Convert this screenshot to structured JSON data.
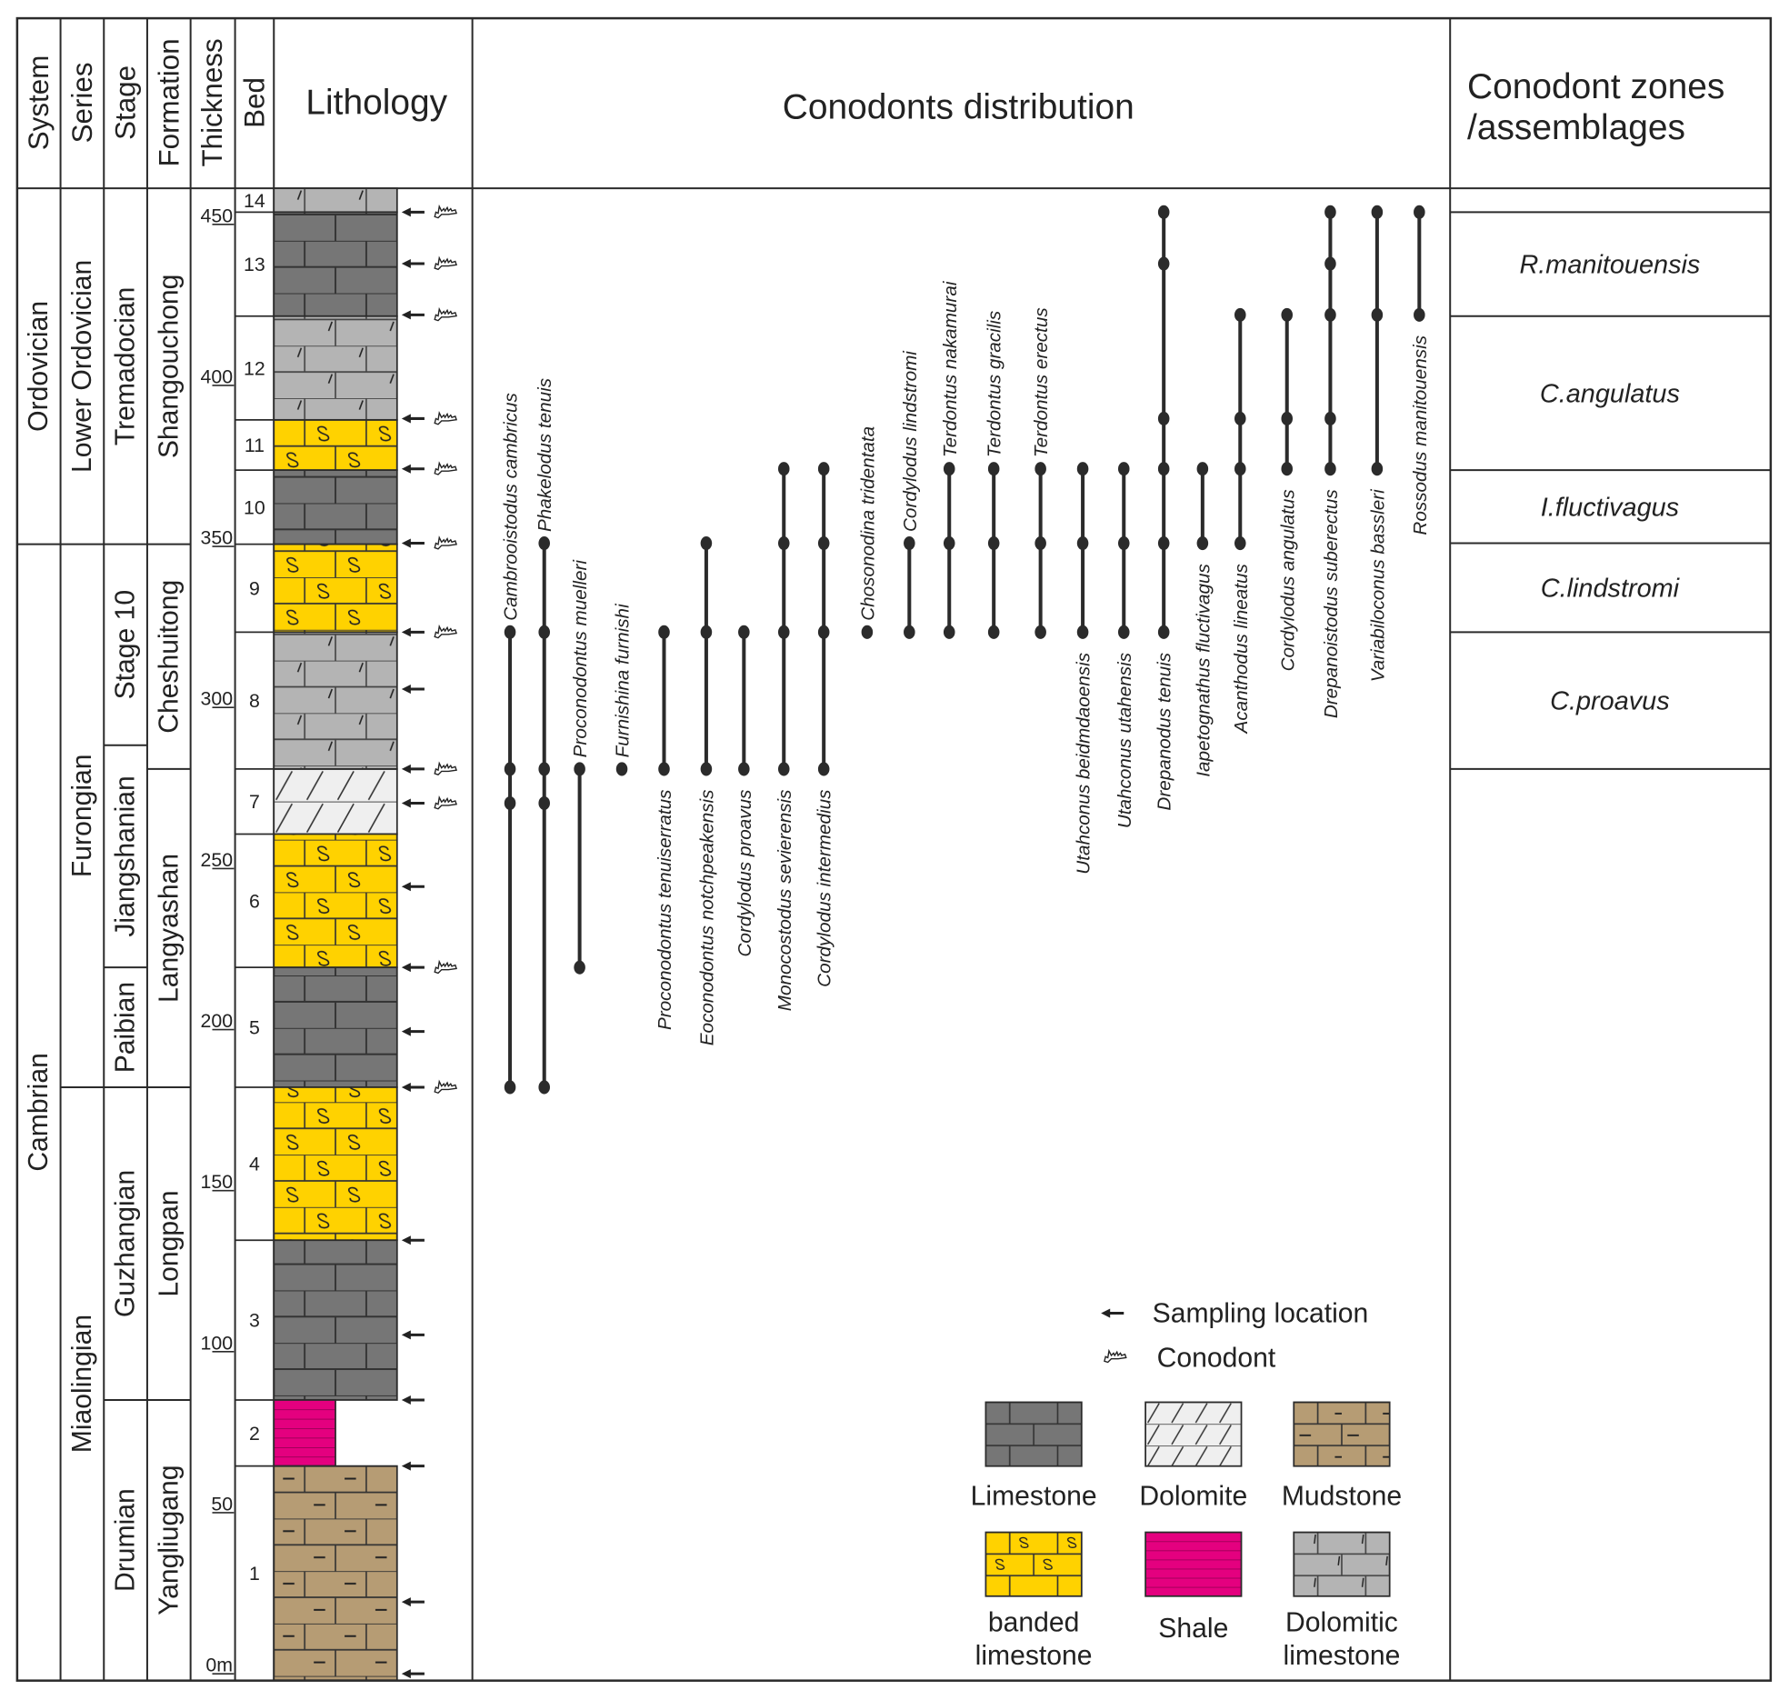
{
  "headers": {
    "system": "System",
    "series": "Series",
    "stage": "Stage",
    "formation": "Formation",
    "thickness": "Thickness",
    "bed": "Bed",
    "lithology": "Lithology",
    "distribution": "Conodonts distribution",
    "zones_line1": "Conodont zones",
    "zones_line2": "/assemblages"
  },
  "units": {
    "system": [
      {
        "name": "Ordovician",
        "top": 461.2,
        "base": 350.7
      },
      {
        "name": "Cambrian",
        "top": 350.7,
        "base": -2
      }
    ],
    "series": [
      {
        "name": "Lower Ordovician",
        "top": 461.2,
        "base": 350.7
      },
      {
        "name": "Furongian",
        "top": 350.7,
        "base": 182.1
      },
      {
        "name": "Miaolingian",
        "top": 182.1,
        "base": -2
      }
    ],
    "stage": [
      {
        "name": "Tremadocian",
        "top": 461.2,
        "base": 350.7
      },
      {
        "name": "Stage 10",
        "top": 350.7,
        "base": 288.3
      },
      {
        "name": "Jiangshanian",
        "top": 288.3,
        "base": 219.3
      },
      {
        "name": "Paibian",
        "top": 219.3,
        "base": 182.1
      },
      {
        "name": "Guzhangian",
        "top": 182.1,
        "base": 85.0
      },
      {
        "name": "Drumian",
        "top": 85.0,
        "base": -2
      }
    ],
    "formation": [
      {
        "name": "Shangouchong",
        "top": 461.2,
        "base": 350.7
      },
      {
        "name": "Cheshuitong",
        "top": 350.7,
        "base": 280.9
      },
      {
        "name": "Langyashan",
        "top": 280.9,
        "base": 182.1
      },
      {
        "name": "Longpan",
        "top": 182.1,
        "base": 85.0
      },
      {
        "name": "Yangliugang",
        "top": 85.0,
        "base": -2
      }
    ]
  },
  "thickness_ticks": [
    {
      "value": 0,
      "label": "0m"
    },
    {
      "value": 50,
      "label": "50"
    },
    {
      "value": 100,
      "label": "100"
    },
    {
      "value": 150,
      "label": "150"
    },
    {
      "value": 200,
      "label": "200"
    },
    {
      "value": 250,
      "label": "250"
    },
    {
      "value": 300,
      "label": "300"
    },
    {
      "value": 350,
      "label": "350"
    },
    {
      "value": 400,
      "label": "400"
    },
    {
      "value": 450,
      "label": "450"
    }
  ],
  "beds": [
    {
      "label": "14",
      "top": 461.2,
      "base": 453.8,
      "lithology": "dolomitic_limestone"
    },
    {
      "label": "13",
      "top": 453.8,
      "base": 421.5,
      "lithology": "limestone"
    },
    {
      "label": "12",
      "top": 421.5,
      "base": 389.3,
      "lithology": "dolomitic_limestone"
    },
    {
      "label": "11",
      "top": 389.3,
      "base": 373.7,
      "lithology": "banded_limestone"
    },
    {
      "label": "10",
      "top": 373.7,
      "base": 350.7,
      "lithology": "limestone"
    },
    {
      "label": "9",
      "top": 350.7,
      "base": 323.4,
      "lithology": "banded_limestone"
    },
    {
      "label": "8",
      "top": 323.4,
      "base": 280.9,
      "lithology": "dolomitic_limestone"
    },
    {
      "label": "7",
      "top": 280.9,
      "base": 260.7,
      "lithology": "dolomite"
    },
    {
      "label": "6",
      "top": 260.7,
      "base": 219.3,
      "lithology": "banded_limestone"
    },
    {
      "label": "5",
      "top": 219.3,
      "base": 182.1,
      "lithology": "limestone"
    },
    {
      "label": "4",
      "top": 182.1,
      "base": 134.6,
      "lithology": "banded_limestone"
    },
    {
      "label": "3",
      "top": 134.6,
      "base": 85.0,
      "lithology": "limestone"
    },
    {
      "label": "2",
      "top": 85.0,
      "base": 64.5,
      "lithology": "shale"
    },
    {
      "label": "1",
      "top": 64.5,
      "base": -2,
      "lithology": "mudstone"
    }
  ],
  "samples": [
    {
      "height": 453.8,
      "conodont": true
    },
    {
      "height": 437.8,
      "conodont": true
    },
    {
      "height": 421.9,
      "conodont": true
    },
    {
      "height": 389.7,
      "conodont": true
    },
    {
      "height": 374.1,
      "conodont": true
    },
    {
      "height": 351.0,
      "conodont": true
    },
    {
      "height": 323.4,
      "conodont": true
    },
    {
      "height": 305.7,
      "conodont": false
    },
    {
      "height": 280.9,
      "conodont": true
    },
    {
      "height": 270.3,
      "conodont": true
    },
    {
      "height": 244.4,
      "conodont": false
    },
    {
      "height": 219.3,
      "conodont": true
    },
    {
      "height": 199.4,
      "conodont": false
    },
    {
      "height": 182.1,
      "conodont": true
    },
    {
      "height": 134.6,
      "conodont": false
    },
    {
      "height": 105.2,
      "conodont": false
    },
    {
      "height": 85.0,
      "conodont": false
    },
    {
      "height": 64.5,
      "conodont": false
    },
    {
      "height": 22.3,
      "conodont": false
    },
    {
      "height": 0,
      "conodont": false
    }
  ],
  "taxa": [
    {
      "name": "Cambrooistodus cambricus",
      "label_side": "above",
      "occurrences": [
        323.4,
        280.9,
        270.3,
        182.1
      ]
    },
    {
      "name": "Phakelodus tenuis",
      "label_side": "above",
      "occurrences": [
        351.0,
        323.4,
        280.9,
        270.3,
        182.1
      ]
    },
    {
      "name": "Proconodontus muelleri",
      "label_side": "above",
      "occurrences": [
        280.9,
        219.3
      ]
    },
    {
      "name": "Furnishina furnishi",
      "label_side": "above",
      "occurrences": [
        280.9
      ]
    },
    {
      "name": "Proconodontus tenuiserratus",
      "label_side": "below",
      "occurrences": [
        323.4,
        280.9
      ]
    },
    {
      "name": "Eoconodontus notchpeakensis",
      "label_side": "below",
      "occurrences": [
        351.0,
        323.4,
        280.9
      ]
    },
    {
      "name": "Cordylodus proavus",
      "label_side": "below",
      "occurrences": [
        323.4,
        280.9
      ]
    },
    {
      "name": "Monocostodus sevierensis",
      "label_side": "below",
      "occurrences": [
        374.1,
        351.0,
        323.4,
        280.9
      ]
    },
    {
      "name": "Cordylodus intermedius",
      "label_side": "below",
      "occurrences": [
        374.1,
        351.0,
        323.4,
        280.9
      ]
    },
    {
      "name": "Chosonodina tridentata",
      "label_side": "above",
      "occurrences": [
        323.4
      ]
    },
    {
      "name": "Cordylodus lindstromi",
      "label_side": "above",
      "occurrences": [
        351.0,
        323.4
      ]
    },
    {
      "name": "Terdontus nakamurai",
      "label_side": "above",
      "occurrences": [
        374.1,
        351.0,
        323.4
      ]
    },
    {
      "name": "Terdontus gracilis",
      "label_side": "above",
      "occurrences": [
        374.1,
        351.0,
        323.4
      ]
    },
    {
      "name": "Terdontus erectus",
      "label_side": "above",
      "occurrences": [
        374.1,
        351.0,
        323.4
      ]
    },
    {
      "name": "Utahconus beidmdaoensis",
      "label_side": "below",
      "occurrences": [
        374.1,
        351.0,
        323.4
      ]
    },
    {
      "name": "Utahconus utahensis",
      "label_side": "below",
      "occurrences": [
        374.1,
        351.0,
        323.4
      ]
    },
    {
      "name": "Drepanodus tenuis",
      "label_side": "below",
      "occurrences": [
        453.8,
        437.8,
        389.7,
        374.1,
        351.0,
        323.4
      ]
    },
    {
      "name": "Iapetognathus fluctivagus",
      "label_side": "below",
      "occurrences": [
        374.1,
        351.0
      ]
    },
    {
      "name": "Acanthodus lineatus",
      "label_side": "below",
      "occurrences": [
        421.9,
        389.7,
        374.1,
        351.0
      ]
    },
    {
      "name": "Cordylodus angulatus",
      "label_side": "below",
      "occurrences": [
        421.9,
        389.7,
        374.1
      ]
    },
    {
      "name": "Drepanoistodus suberectus",
      "label_side": "below",
      "occurrences": [
        453.8,
        437.8,
        421.9,
        389.7,
        374.1
      ]
    },
    {
      "name": "Variabiloconus bassleri",
      "label_side": "below",
      "occurrences": [
        453.8,
        421.9,
        374.1
      ]
    },
    {
      "name": "Rossodus manitouensis",
      "label_side": "below",
      "occurrences": [
        453.8,
        421.9
      ]
    }
  ],
  "zones": [
    {
      "name": "",
      "top": 461.2,
      "base": 453.8
    },
    {
      "name": "R.manitouensis",
      "top": 453.8,
      "base": 421.5
    },
    {
      "name": "C.angulatus",
      "top": 421.5,
      "base": 373.7
    },
    {
      "name": "I.fluctivagus",
      "top": 373.7,
      "base": 351.0
    },
    {
      "name": "C.lindstromi",
      "top": 351.0,
      "base": 323.4
    },
    {
      "name": "C.proavus",
      "top": 323.4,
      "base": 280.9
    }
  ],
  "legend": {
    "sampling": "Sampling location",
    "conodont": "Conodont",
    "items": [
      {
        "type": "limestone",
        "line1": "Limestone",
        "line2": ""
      },
      {
        "type": "dolomite",
        "line1": "Dolomite",
        "line2": ""
      },
      {
        "type": "mudstone",
        "line1": "Mudstone",
        "line2": ""
      },
      {
        "type": "banded_limestone",
        "line1": "banded",
        "line2": "limestone"
      },
      {
        "type": "shale",
        "line1": "Shale",
        "line2": ""
      },
      {
        "type": "dolomitic_limestone",
        "line1": "Dolomitic",
        "line2": "limestone"
      }
    ]
  },
  "colors": {
    "limestone": "#767676",
    "dolomitic_limestone": "#b4b4b4",
    "banded_limestone": "#ffd200",
    "dolomite": "#efefef",
    "shale": "#e4007f",
    "mudstone": "#b69c74",
    "line": "#2b2b2b"
  }
}
